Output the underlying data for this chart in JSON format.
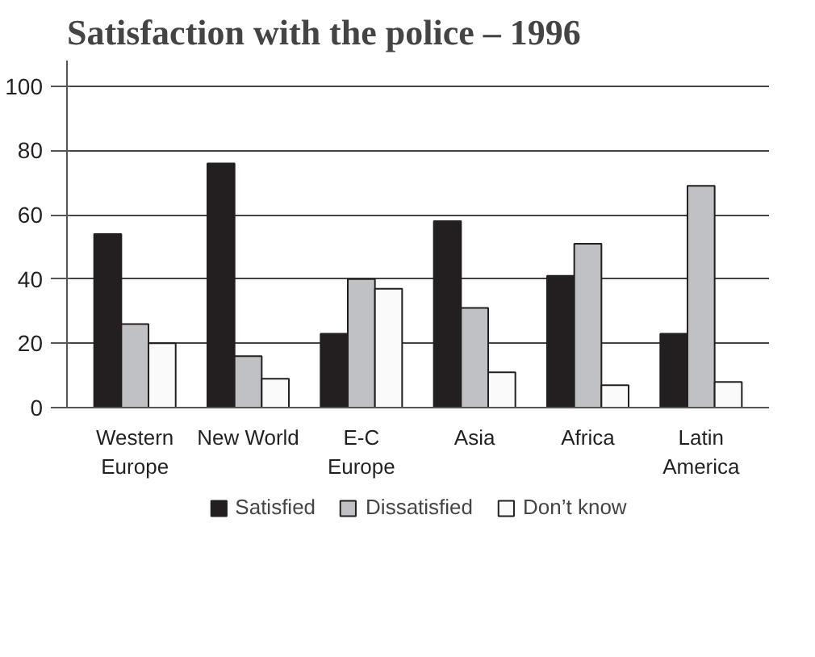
{
  "chart_data": {
    "type": "bar",
    "title": "Satisfaction with the police – 1996",
    "categories": [
      "Western\nEurope",
      "New World",
      "E-C\nEurope",
      "Asia",
      "Africa",
      "Latin\nAmerica"
    ],
    "series": [
      {
        "name": "Satisfied",
        "color": "#231f20",
        "values": [
          54,
          76,
          23,
          58,
          41,
          23
        ]
      },
      {
        "name": "Dissatisfied",
        "color": "#c0c1c4",
        "values": [
          26,
          16,
          40,
          31,
          51,
          69
        ]
      },
      {
        "name": "Don’t know",
        "color": "#fafafa",
        "values": [
          20,
          9,
          37,
          11,
          7,
          8
        ]
      }
    ],
    "ylim": [
      0,
      108
    ],
    "yticks": [
      0,
      20,
      40,
      60,
      80,
      100
    ],
    "grid": "y",
    "legend": "bottom"
  }
}
